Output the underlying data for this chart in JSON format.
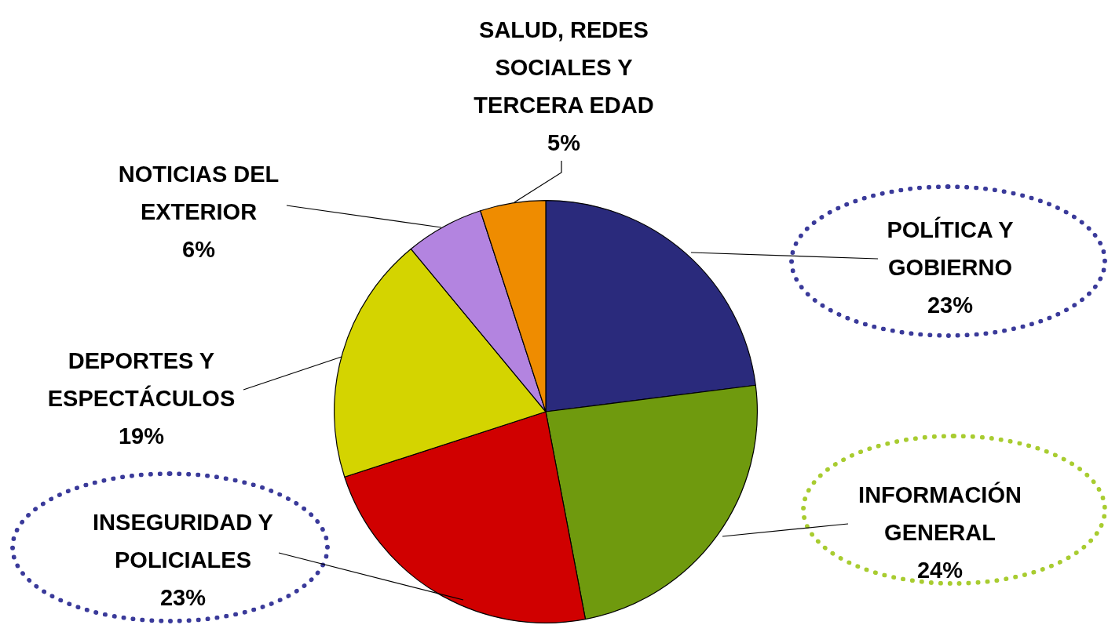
{
  "chart_data": {
    "type": "pie",
    "categories": [
      "POLÍTICA Y GOBIERNO",
      "INFORMACIÓN GENERAL",
      "INSEGURIDAD Y POLICIALES",
      "DEPORTES Y ESPECTÁCULOS",
      "NOTICIAS DEL EXTERIOR",
      "SALUD, REDES SOCIALES Y TERCERA EDAD"
    ],
    "values": [
      23,
      24,
      23,
      19,
      6,
      5
    ],
    "value_labels": [
      "23%",
      "24%",
      "23%",
      "19%",
      "6%",
      "5%"
    ],
    "colors": [
      "#2a2a7c",
      "#6f9a0e",
      "#d00000",
      "#d4d400",
      "#b384e0",
      "#ef8c00"
    ],
    "legend": false
  }
}
